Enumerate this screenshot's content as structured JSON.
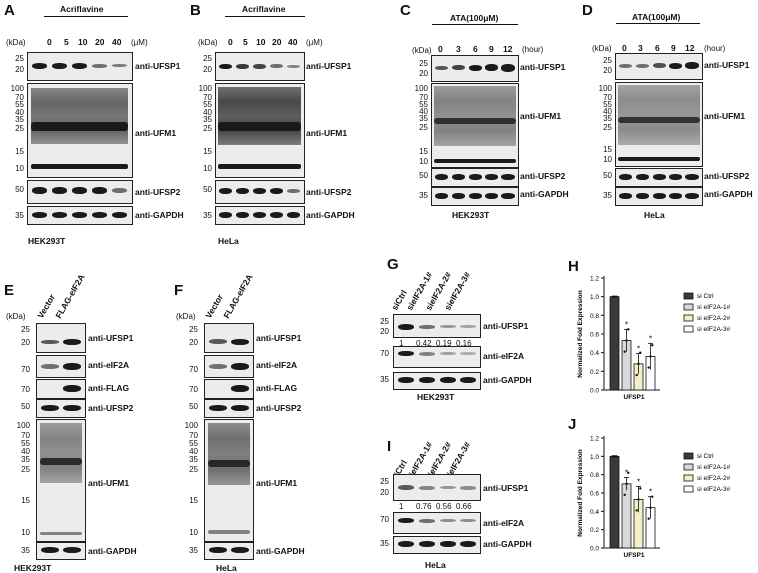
{
  "panels": {
    "A": {
      "letter": "A",
      "treatment": "Acriflavine",
      "doses": [
        "0",
        "5",
        "10",
        "20",
        "40"
      ],
      "unit": "(μM)",
      "kda": "(kDa)",
      "cell": "HEK293T",
      "blots": [
        "anti-UFSP1",
        "anti-UFM1",
        "anti-UFSP2",
        "anti-GAPDH"
      ]
    },
    "B": {
      "letter": "B",
      "treatment": "Acriflavine",
      "doses": [
        "0",
        "5",
        "10",
        "20",
        "40"
      ],
      "unit": "(μM)",
      "kda": "(kDa)",
      "cell": "HeLa",
      "blots": [
        "anti-UFSP1",
        "anti-UFM1",
        "anti-UFSP2",
        "anti-GAPDH"
      ]
    },
    "C": {
      "letter": "C",
      "treatment": "ATA(100μM)",
      "times": [
        "0",
        "3",
        "6",
        "9",
        "12"
      ],
      "unit": "(hour)",
      "kda": "(kDa)",
      "cell": "HEK293T",
      "blots": [
        "anti-UFSP1",
        "anti-UFM1",
        "anti-UFSP2",
        "anti-GAPDH"
      ]
    },
    "D": {
      "letter": "D",
      "treatment": "ATA(100μM)",
      "times": [
        "0",
        "3",
        "6",
        "9",
        "12"
      ],
      "unit": "(hour)",
      "kda": "(kDa)",
      "cell": "HeLa",
      "blots": [
        "anti-UFSP1",
        "anti-UFM1",
        "anti-UFSP2",
        "anti-GAPDH"
      ]
    },
    "E": {
      "letter": "E",
      "lanes": [
        "Vector",
        "FLAG-eIF2A"
      ],
      "kda": "(kDa)",
      "cell": "HEK293T",
      "blots": [
        "anti-UFSP1",
        "anti-eIF2A",
        "anti-FLAG",
        "anti-UFSP2",
        "anti-UFM1",
        "anti-GAPDH"
      ]
    },
    "F": {
      "letter": "F",
      "lanes": [
        "Vector",
        "FLAG-eIF2A"
      ],
      "kda": "(kDa)",
      "cell": "HeLa",
      "blots": [
        "anti-UFSP1",
        "anti-eIF2A",
        "anti-FLAG",
        "anti-UFSP2",
        "anti-UFM1",
        "anti-GAPDH"
      ]
    },
    "G": {
      "letter": "G",
      "lanes": [
        "siCtrl",
        "sieIF2A-1#",
        "sieIF2A-2#",
        "sieIF2A-3#"
      ],
      "quant": [
        "1",
        "0.42",
        "0.19",
        "0.16"
      ],
      "cell": "HEK293T",
      "blots": [
        "anti-UFSP1",
        "anti-eIF2A",
        "anti-GAPDH"
      ]
    },
    "I": {
      "letter": "I",
      "lanes": [
        "siCtrl",
        "sieIF2A-1#",
        "sieIF2A-2#",
        "sieIF2A-3#"
      ],
      "quant": [
        "1",
        "0.76",
        "0.56",
        "0.66"
      ],
      "cell": "HeLa",
      "blots": [
        "anti-UFSP1",
        "anti-eIF2A",
        "anti-GAPDH"
      ]
    },
    "H": {
      "letter": "H"
    },
    "J": {
      "letter": "J"
    }
  },
  "mw": {
    "ufsp1": [
      "25",
      "20"
    ],
    "ufm1": [
      "100",
      "70",
      "55",
      "40",
      "35",
      "25",
      "15",
      "10"
    ],
    "ufsp2": [
      "50"
    ],
    "gapdh": [
      "35"
    ],
    "eif2a": [
      "70"
    ],
    "flag": [
      "70"
    ],
    "ufsp2_e": [
      "50"
    ]
  },
  "chart_data": [
    {
      "type": "bar",
      "panel": "H",
      "categories": [
        "UFSP1"
      ],
      "series": [
        {
          "name": "si Ctrl",
          "values": [
            1.0
          ],
          "color": "#3a3a3a"
        },
        {
          "name": "si eIF2A-1#",
          "values": [
            0.53
          ],
          "color": "#d9d9d9"
        },
        {
          "name": "si eIF2A-2#",
          "values": [
            0.28
          ],
          "color": "#f3efc7"
        },
        {
          "name": "si eIF2A-3#",
          "values": [
            0.36
          ],
          "color": "#ffffff"
        }
      ],
      "significance": [
        "",
        "*",
        "*",
        "*"
      ],
      "ylabel": "Normalized Fold Expression",
      "yticks": [
        "0.0",
        "0.2",
        "0.4",
        "0.6",
        "0.8",
        "1.0",
        "1.2"
      ],
      "ylim": [
        0,
        1.2
      ],
      "legend": "right"
    },
    {
      "type": "bar",
      "panel": "J",
      "categories": [
        "UFSP1"
      ],
      "series": [
        {
          "name": "si Ctrl",
          "values": [
            1.0
          ],
          "color": "#3a3a3a"
        },
        {
          "name": "si eIF2A-1#",
          "values": [
            0.7
          ],
          "color": "#d9d9d9"
        },
        {
          "name": "si eIF2A-2#",
          "values": [
            0.53
          ],
          "color": "#f3efc7"
        },
        {
          "name": "si eIF2A-3#",
          "values": [
            0.44
          ],
          "color": "#ffffff"
        }
      ],
      "significance": [
        "",
        "*",
        "*",
        "*"
      ],
      "ylabel": "Normalized Fold Expression",
      "yticks": [
        "0.0",
        "0.2",
        "0.4",
        "0.6",
        "0.8",
        "1.0",
        "1.2"
      ],
      "ylim": [
        0,
        1.2
      ],
      "legend": "right"
    }
  ]
}
